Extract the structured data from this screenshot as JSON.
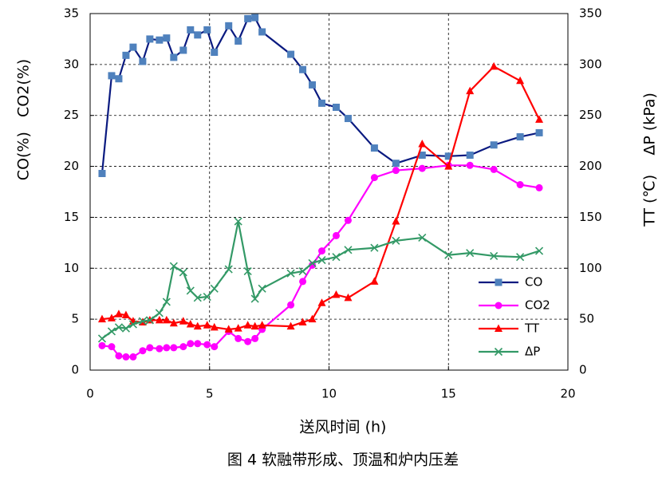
{
  "chart_data": {
    "type": "line",
    "title": "图 4 软融带形成、顶温和炉内压差",
    "x_label": "送风时间 (h)",
    "y_label": "CO(%)   CO2(%)",
    "y2_label": "TT (℃)    ΔP (kPa)",
    "x": [
      0.5,
      0.9,
      1.2,
      1.5,
      1.8,
      2.2,
      2.5,
      2.9,
      3.2,
      3.5,
      3.9,
      4.2,
      4.5,
      4.9,
      5.2,
      5.8,
      6.2,
      6.6,
      6.9,
      7.2,
      8.4,
      8.9,
      9.3,
      9.7,
      10.3,
      10.8,
      11.9,
      12.8,
      13.9,
      15.0,
      15.9,
      16.9,
      18.0,
      18.8
    ],
    "xlim": [
      0,
      20
    ],
    "xticks": [
      0,
      5,
      10,
      15,
      20
    ],
    "ylim": [
      0,
      35
    ],
    "yticks": [
      0,
      5,
      10,
      15,
      20,
      25,
      30,
      35
    ],
    "y2lim": [
      0,
      350
    ],
    "y2ticks": [
      0,
      50,
      100,
      150,
      200,
      250,
      300,
      350
    ],
    "grid": true,
    "legend": "lower right",
    "series": [
      {
        "name": "CO",
        "color": "#0a1a80",
        "marker": "square",
        "marker_color": "#4f81bd",
        "values": [
          19.3,
          28.9,
          28.6,
          30.9,
          31.7,
          30.3,
          32.5,
          32.4,
          32.6,
          30.7,
          31.4,
          33.4,
          32.9,
          33.4,
          31.2,
          33.8,
          32.3,
          34.5,
          34.6,
          33.2,
          31.0,
          29.5,
          28.0,
          26.2,
          25.8,
          24.7,
          21.8,
          20.3,
          21.1,
          21.0,
          21.1,
          22.1,
          22.9,
          23.3
        ]
      },
      {
        "name": "CO2",
        "color": "#ff00ff",
        "marker": "circle",
        "marker_color": "#ff00ff",
        "values": [
          2.4,
          2.3,
          1.4,
          1.3,
          1.3,
          1.9,
          2.2,
          2.1,
          2.2,
          2.2,
          2.3,
          2.6,
          2.6,
          2.5,
          2.3,
          3.8,
          3.1,
          2.8,
          3.1,
          4.0,
          6.4,
          8.7,
          10.3,
          11.7,
          13.2,
          14.7,
          18.9,
          19.6,
          19.8,
          20.1,
          20.1,
          19.7,
          18.2,
          17.9
        ]
      },
      {
        "name": "TT",
        "color": "#ff0000",
        "marker": "triangle",
        "marker_color": "#ff0000",
        "axis": "y2",
        "values": [
          50,
          51,
          55,
          54,
          48,
          47,
          49,
          49,
          49,
          46,
          48,
          45,
          43,
          44,
          42,
          40,
          41,
          44,
          43,
          44,
          43,
          47,
          50,
          66,
          74,
          71,
          87,
          146,
          222,
          200,
          274,
          298,
          284,
          246
        ]
      },
      {
        "name": "ΔP",
        "color": "#339966",
        "marker": "x",
        "marker_color": "#339966",
        "axis": "y2",
        "values": [
          31,
          38,
          42,
          41,
          45,
          48,
          49,
          56,
          67,
          102,
          96,
          78,
          71,
          72,
          80,
          99,
          146,
          97,
          70,
          80,
          95,
          97,
          105,
          108,
          111,
          118,
          120,
          127,
          130,
          113,
          115,
          112,
          111,
          117
        ]
      }
    ]
  }
}
